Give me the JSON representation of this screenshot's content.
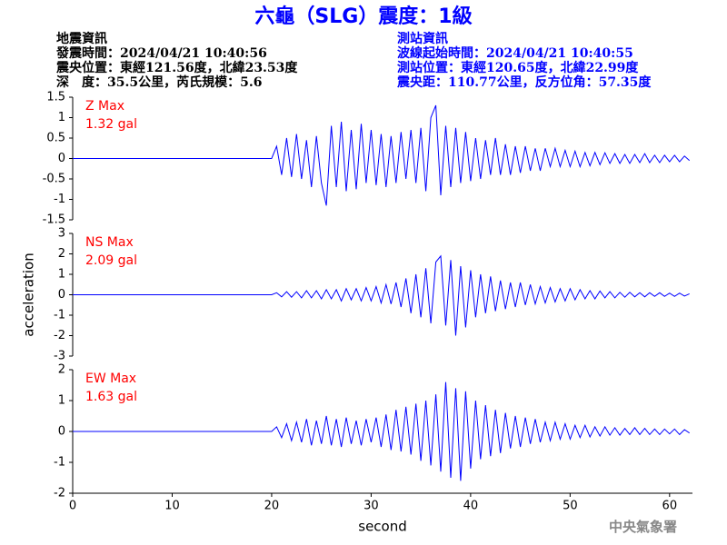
{
  "header": {
    "title": "六龜（SLG）震度：1級",
    "left": [
      "地震資訊",
      "發震時間：2024/04/21 10:40:56",
      "震央位置：東經121.56度，北緯23.53度",
      "深　度：35.5公里，芮氏規模：5.6"
    ],
    "right": [
      "測站資訊",
      "波線起始時間：2024/04/21 10:40:55",
      "測站位置：東經120.65度，北緯22.99度",
      "震央距：110.77公里，反方位角：57.35度"
    ],
    "footer": "中央氣象署"
  },
  "chart_data": [
    {
      "type": "line",
      "annotation": [
        "Z Max",
        "1.32 gal"
      ],
      "color": "#0000ff",
      "xlim": [
        0,
        62.3
      ],
      "ylim": [
        -1.5,
        1.5
      ],
      "yticks": [
        1.5,
        1,
        0.5,
        0,
        -0.5,
        -1,
        -1.5
      ],
      "x": [
        0,
        20,
        20.5,
        21,
        21.5,
        22,
        22.5,
        23,
        23.5,
        24,
        24.5,
        25,
        25.5,
        26,
        26.5,
        27,
        27.5,
        28,
        28.5,
        29,
        29.5,
        30,
        30.5,
        31,
        31.5,
        32,
        32.5,
        33,
        33.5,
        34,
        34.5,
        35,
        35.5,
        36,
        36.5,
        37,
        37.5,
        38,
        38.5,
        39,
        39.5,
        40,
        40.5,
        41,
        41.5,
        42,
        42.5,
        43,
        43.5,
        44,
        44.5,
        45,
        45.5,
        46,
        46.5,
        47,
        47.5,
        48,
        48.5,
        49,
        49.5,
        50,
        50.5,
        51,
        51.5,
        52,
        52.5,
        53,
        53.5,
        54,
        54.5,
        55,
        55.5,
        56,
        56.5,
        57,
        57.5,
        58,
        58.5,
        59,
        59.5,
        60,
        60.5,
        61,
        61.5,
        62
      ],
      "values": [
        0,
        0,
        0.3,
        -0.4,
        0.5,
        -0.45,
        0.6,
        -0.5,
        0.45,
        -0.7,
        0.55,
        -0.6,
        -1.15,
        0.8,
        -0.7,
        0.9,
        -0.8,
        0.7,
        -0.75,
        0.85,
        -0.6,
        0.7,
        -0.65,
        0.6,
        -0.7,
        0.55,
        -0.6,
        0.65,
        -0.5,
        0.7,
        -0.6,
        0.75,
        -0.8,
        1.0,
        1.3,
        -0.9,
        0.8,
        -0.7,
        0.75,
        -0.6,
        0.65,
        -0.55,
        0.5,
        -0.5,
        0.45,
        -0.4,
        0.5,
        -0.4,
        0.35,
        -0.4,
        0.3,
        -0.35,
        0.3,
        -0.3,
        0.25,
        -0.3,
        0.25,
        -0.2,
        0.25,
        -0.2,
        0.2,
        -0.2,
        0.18,
        -0.2,
        0.15,
        -0.18,
        0.15,
        -0.15,
        0.14,
        -0.12,
        0.12,
        -0.12,
        0.1,
        -0.12,
        0.1,
        -0.1,
        0.12,
        -0.1,
        0.08,
        -0.1,
        0.08,
        -0.08,
        0.08,
        -0.08,
        0.06,
        -0.05
      ]
    },
    {
      "type": "line",
      "annotation": [
        "NS Max",
        "2.09 gal"
      ],
      "color": "#0000ff",
      "ylabel": "acceleration",
      "xlim": [
        0,
        62.3
      ],
      "ylim": [
        -3,
        3
      ],
      "yticks": [
        3,
        2,
        1,
        0,
        -1,
        -2,
        -3
      ],
      "x": [
        0,
        20,
        20.5,
        21,
        21.5,
        22,
        22.5,
        23,
        23.5,
        24,
        24.5,
        25,
        25.5,
        26,
        26.5,
        27,
        27.5,
        28,
        28.5,
        29,
        29.5,
        30,
        30.5,
        31,
        31.5,
        32,
        32.5,
        33,
        33.5,
        34,
        34.5,
        35,
        35.5,
        36,
        36.5,
        37,
        37.5,
        38,
        38.5,
        39,
        39.5,
        40,
        40.5,
        41,
        41.5,
        42,
        42.5,
        43,
        43.5,
        44,
        44.5,
        45,
        45.5,
        46,
        46.5,
        47,
        47.5,
        48,
        48.5,
        49,
        49.5,
        50,
        50.5,
        51,
        51.5,
        52,
        52.5,
        53,
        53.5,
        54,
        54.5,
        55,
        55.5,
        56,
        56.5,
        57,
        57.5,
        58,
        58.5,
        59,
        59.5,
        60,
        60.5,
        61,
        61.5,
        62
      ],
      "values": [
        0,
        0,
        0.1,
        -0.1,
        0.15,
        -0.12,
        0.15,
        -0.15,
        0.2,
        -0.15,
        0.2,
        -0.2,
        0.25,
        -0.2,
        0.25,
        -0.3,
        0.3,
        -0.25,
        0.3,
        -0.3,
        0.35,
        -0.3,
        0.4,
        -0.4,
        0.5,
        -0.45,
        0.6,
        -0.6,
        0.8,
        -0.9,
        1.0,
        -1.1,
        1.3,
        -1.4,
        1.6,
        1.9,
        -1.5,
        1.7,
        -2.0,
        1.4,
        -1.6,
        1.2,
        -1.1,
        1.0,
        -0.9,
        0.9,
        -0.8,
        0.7,
        -0.7,
        0.6,
        -0.6,
        0.6,
        -0.5,
        0.5,
        -0.45,
        0.4,
        -0.4,
        0.35,
        -0.35,
        0.3,
        -0.3,
        0.3,
        -0.25,
        0.25,
        -0.2,
        0.2,
        -0.2,
        0.18,
        -0.15,
        0.15,
        -0.15,
        0.12,
        -0.12,
        0.12,
        -0.1,
        0.1,
        -0.1,
        0.1,
        -0.08,
        0.1,
        -0.08,
        0.08,
        -0.08,
        0.08,
        -0.06,
        0.05
      ]
    },
    {
      "type": "line",
      "annotation": [
        "EW Max",
        "1.63 gal"
      ],
      "color": "#0000ff",
      "xlabel": "second",
      "xlim": [
        0,
        62.3
      ],
      "ylim": [
        -2,
        2
      ],
      "xticks": [
        0,
        10,
        20,
        30,
        40,
        50,
        60
      ],
      "yticks": [
        2,
        1,
        0,
        -1,
        -2
      ],
      "x": [
        0,
        20,
        20.5,
        21,
        21.5,
        22,
        22.5,
        23,
        23.5,
        24,
        24.5,
        25,
        25.5,
        26,
        26.5,
        27,
        27.5,
        28,
        28.5,
        29,
        29.5,
        30,
        30.5,
        31,
        31.5,
        32,
        32.5,
        33,
        33.5,
        34,
        34.5,
        35,
        35.5,
        36,
        36.5,
        37,
        37.5,
        38,
        38.5,
        39,
        39.5,
        40,
        40.5,
        41,
        41.5,
        42,
        42.5,
        43,
        43.5,
        44,
        44.5,
        45,
        45.5,
        46,
        46.5,
        47,
        47.5,
        48,
        48.5,
        49,
        49.5,
        50,
        50.5,
        51,
        51.5,
        52,
        52.5,
        53,
        53.5,
        54,
        54.5,
        55,
        55.5,
        56,
        56.5,
        57,
        57.5,
        58,
        58.5,
        59,
        59.5,
        60,
        60.5,
        61,
        61.5,
        62
      ],
      "values": [
        0,
        0,
        0.15,
        -0.2,
        0.25,
        -0.3,
        0.3,
        -0.35,
        0.4,
        -0.45,
        0.35,
        -0.4,
        0.5,
        -0.45,
        0.4,
        -0.5,
        0.45,
        -0.4,
        0.35,
        -0.45,
        0.4,
        -0.35,
        0.45,
        -0.5,
        0.55,
        -0.6,
        0.7,
        -0.65,
        0.8,
        -0.75,
        0.9,
        -0.95,
        1.0,
        -1.1,
        1.2,
        -1.3,
        1.6,
        -1.5,
        1.4,
        -1.6,
        1.3,
        -1.2,
        1.0,
        -0.9,
        0.85,
        -0.8,
        0.7,
        -0.7,
        0.6,
        -0.55,
        0.5,
        -0.5,
        0.45,
        -0.4,
        0.4,
        -0.35,
        0.3,
        -0.3,
        0.3,
        -0.25,
        0.25,
        -0.25,
        0.2,
        -0.2,
        0.2,
        -0.18,
        0.15,
        -0.15,
        0.15,
        -0.12,
        0.12,
        -0.12,
        0.1,
        -0.1,
        0.12,
        -0.1,
        0.1,
        -0.1,
        0.08,
        -0.1,
        0.08,
        -0.08,
        0.08,
        -0.1,
        0.06,
        -0.05
      ]
    }
  ]
}
